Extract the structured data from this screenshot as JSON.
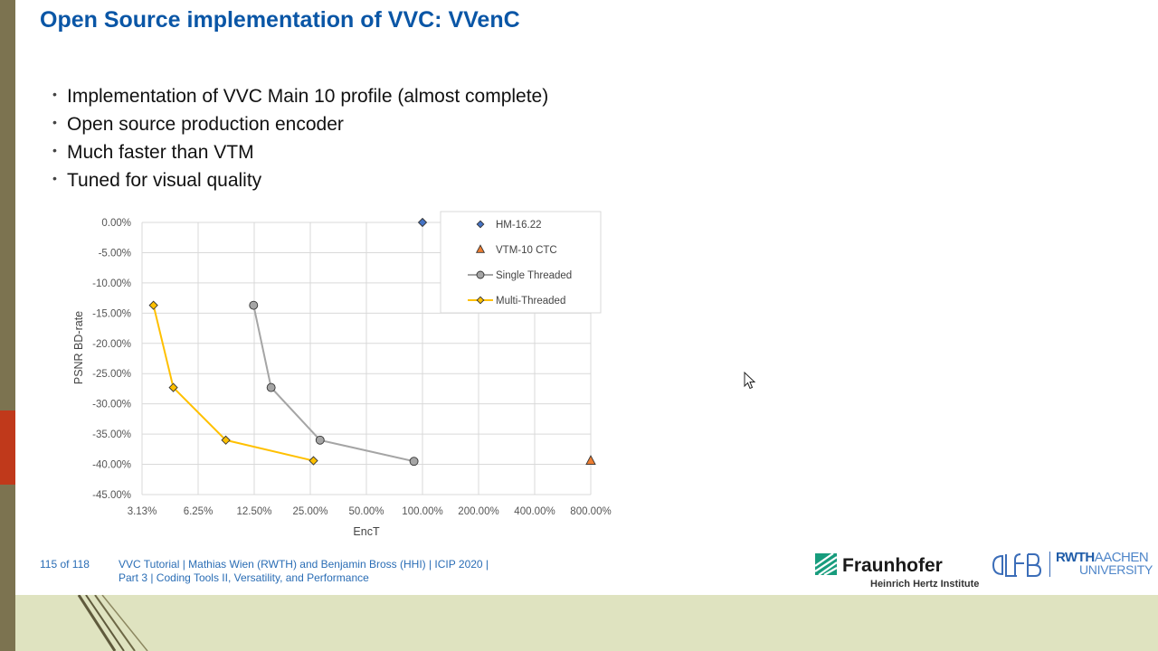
{
  "slide": {
    "title": "Open Source implementation of VVC: VVenC",
    "bullets": [
      "Implementation of VVC Main 10 profile (almost complete)",
      "Open source production encoder",
      "Much faster than VTM",
      "Tuned for visual quality"
    ],
    "bullet_glyph": "•"
  },
  "footer": {
    "page": "115 of 118",
    "line1": "VVC Tutorial  |  Mathias Wien (RWTH) and Benjamin Bross (HHI)  |  ICIP 2020  |",
    "line2": "Part 3  |  Coding Tools II, Versatility, and Performance"
  },
  "logos": {
    "fraunhofer_name": "Fraunhofer",
    "fraunhofer_sub": "Heinrich Hertz Institute",
    "rwth_bold": "RWTH",
    "rwth_light": "AACHEN",
    "rwth_line2": "UNIVERSITY",
    "lfb_text": "LfB"
  },
  "colors": {
    "title": "#0a56a6",
    "hm": "#4472c4",
    "vtm": "#ed7d31",
    "single_line": "#a5a5a5",
    "single_marker": "#a5a5a5",
    "multi_line": "#ffc000",
    "multi_marker": "#ffc000"
  },
  "chart_data": {
    "type": "scatter",
    "xlabel": "EncT",
    "ylabel": "PSNR BD-rate",
    "x_scale": "log2",
    "xlim": [
      3.125,
      800
    ],
    "ylim": [
      -45,
      0
    ],
    "x_ticks": [
      3.125,
      6.25,
      12.5,
      25,
      50,
      100,
      200,
      400,
      800
    ],
    "x_tick_labels": [
      "3.13%",
      "6.25%",
      "12.50%",
      "25.00%",
      "50.00%",
      "100.00%",
      "200.00%",
      "400.00%",
      "800.00%"
    ],
    "y_ticks": [
      0,
      -5,
      -10,
      -15,
      -20,
      -25,
      -30,
      -35,
      -40,
      -45
    ],
    "y_tick_labels": [
      "0.00%",
      "-5.00%",
      "-10.00%",
      "-15.00%",
      "-20.00%",
      "-25.00%",
      "-30.00%",
      "-35.00%",
      "-40.00%",
      "-45.00%"
    ],
    "grid": true,
    "legend_position": "top-right",
    "series": [
      {
        "name": "HM-16.22",
        "marker": "diamond",
        "line": false,
        "x": [
          100
        ],
        "y": [
          0.0
        ]
      },
      {
        "name": "VTM-10 CTC",
        "marker": "triangle",
        "line": false,
        "x": [
          800
        ],
        "y": [
          -39.4
        ]
      },
      {
        "name": "Single Threaded",
        "marker": "circle",
        "line": true,
        "x": [
          12.4,
          15.4,
          28.2,
          90.0
        ],
        "y": [
          -13.7,
          -27.3,
          -36.0,
          -39.5
        ]
      },
      {
        "name": "Multi-Threaded",
        "marker": "diamond",
        "line": true,
        "x": [
          3.6,
          4.6,
          8.8,
          26.0
        ],
        "y": [
          -13.7,
          -27.3,
          -36.0,
          -39.4
        ]
      }
    ]
  }
}
